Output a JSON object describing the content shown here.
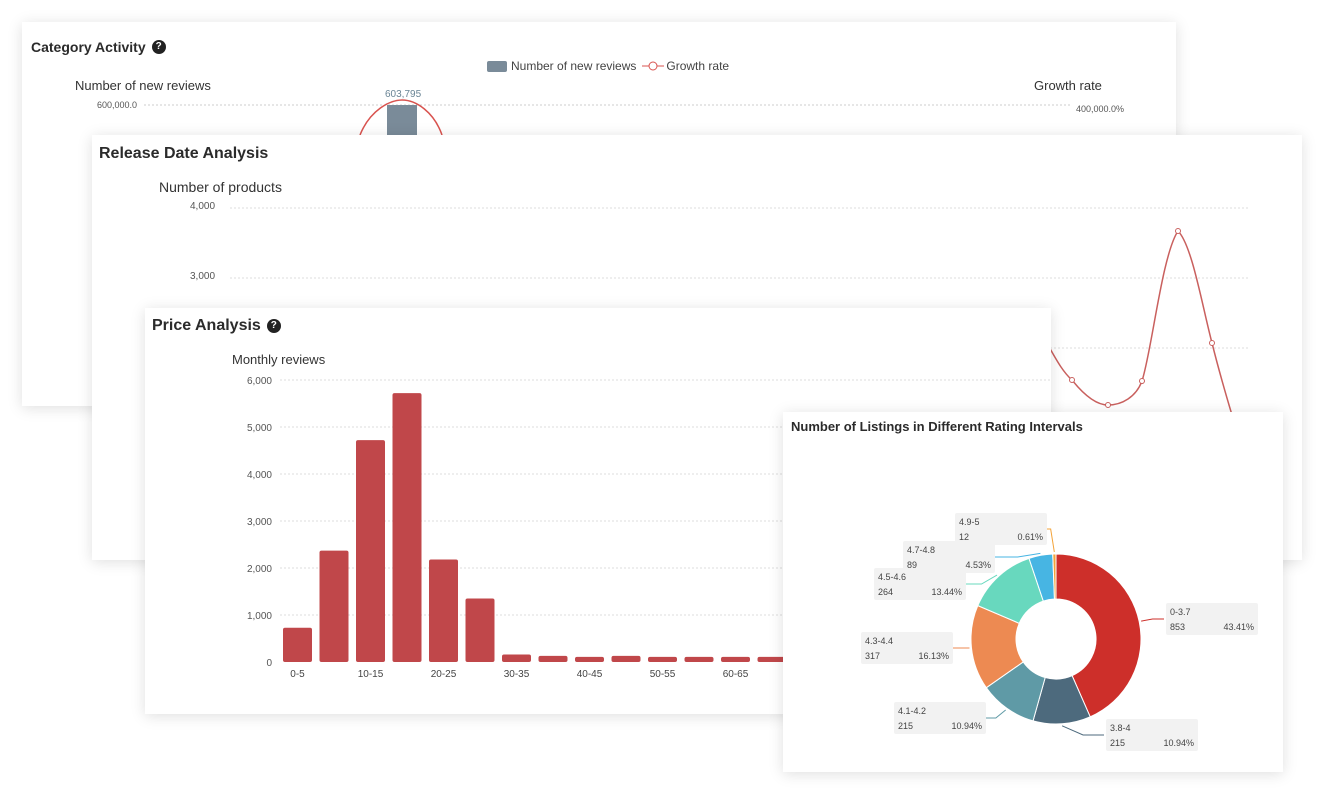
{
  "category_activity": {
    "title": "Category Activity",
    "help_icon": "question-circle-icon",
    "legend": {
      "bar_label": "Number of new reviews",
      "line_label": "Growth rate",
      "bar_color": "#7a8b99",
      "line_color": "#d9534f"
    },
    "chart_data": {
      "type": "bar",
      "ylabel": "Number of new reviews",
      "y2label": "Growth rate",
      "y_tick_top": "600,000.0",
      "y2_tick_top": "400,000.0%",
      "data_label": "603,795"
    }
  },
  "release_date": {
    "title": "Release Date Analysis",
    "chart_data": {
      "type": "line",
      "ylabel": "Number of products",
      "y_ticks": [
        "4,000",
        "3,000"
      ],
      "line_color": "#c9605e"
    }
  },
  "price": {
    "title": "Price Analysis",
    "help_icon": "question-circle-icon",
    "chart_data": {
      "type": "bar",
      "ylabel": "Monthly reviews",
      "ylim": [
        0,
        6000
      ],
      "y_ticks": [
        "6,000",
        "5,000",
        "4,000",
        "3,000",
        "2,000",
        "1,000",
        "0"
      ],
      "x_tick_labels": [
        "0-5",
        "10-15",
        "20-25",
        "30-35",
        "40-45",
        "50-55",
        "60-65"
      ],
      "values": [
        730,
        2370,
        4720,
        5720,
        2180,
        1350,
        160,
        130,
        110,
        130,
        110,
        110,
        110,
        110
      ],
      "bar_color": "#c0474a"
    }
  },
  "rating": {
    "title": "Number of Listings in Different Rating Intervals",
    "chart_data": {
      "type": "pie",
      "slices": [
        {
          "label": "0-3.7",
          "value": 853,
          "percent": "43.41%",
          "color": "#cd2f2a"
        },
        {
          "label": "3.8-4",
          "value": 215,
          "percent": "10.94%",
          "color": "#4d6a7d"
        },
        {
          "label": "4.1-4.2",
          "value": 215,
          "percent": "10.94%",
          "color": "#5f9aa6"
        },
        {
          "label": "4.3-4.4",
          "value": 317,
          "percent": "16.13%",
          "color": "#ed8a52"
        },
        {
          "label": "4.5-4.6",
          "value": 264,
          "percent": "13.44%",
          "color": "#68d8be"
        },
        {
          "label": "4.7-4.8",
          "value": 89,
          "percent": "4.53%",
          "color": "#47b5e3"
        },
        {
          "label": "4.9-5",
          "value": 12,
          "percent": "0.61%",
          "color": "#f3a33a"
        }
      ]
    }
  }
}
